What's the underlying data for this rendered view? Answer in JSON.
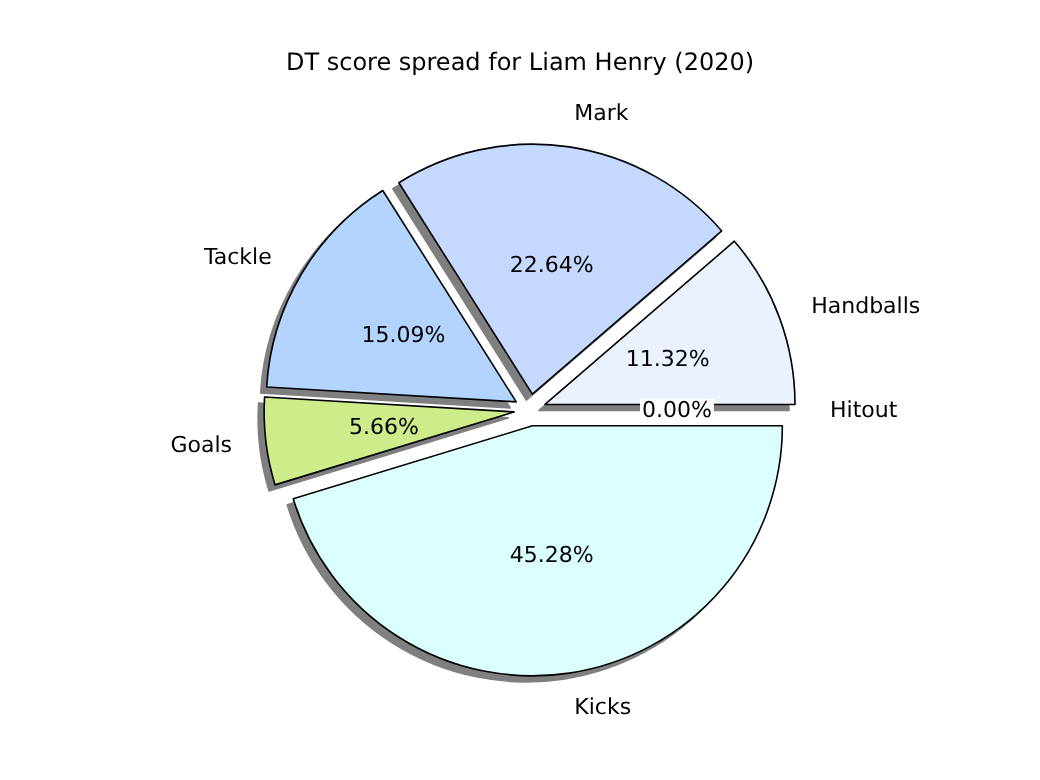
{
  "chart_data": {
    "type": "pie",
    "title": "DT score spread for Liam Henry (2020)",
    "categories": [
      "Hitout",
      "Handballs",
      "Mark",
      "Tackle",
      "Goals",
      "Kicks"
    ],
    "values": [
      0.0,
      11.32,
      22.64,
      15.09,
      5.66,
      45.28
    ],
    "colors": [
      "#e0e8ff",
      "#eaf1ff",
      "#c5d9ff",
      "#b3d4ff",
      "#cfec8a",
      "#dbffff"
    ],
    "value_labels": [
      "0.00%",
      "11.32%",
      "22.64%",
      "15.09%",
      "5.66%",
      "45.28%"
    ],
    "legend": false
  }
}
